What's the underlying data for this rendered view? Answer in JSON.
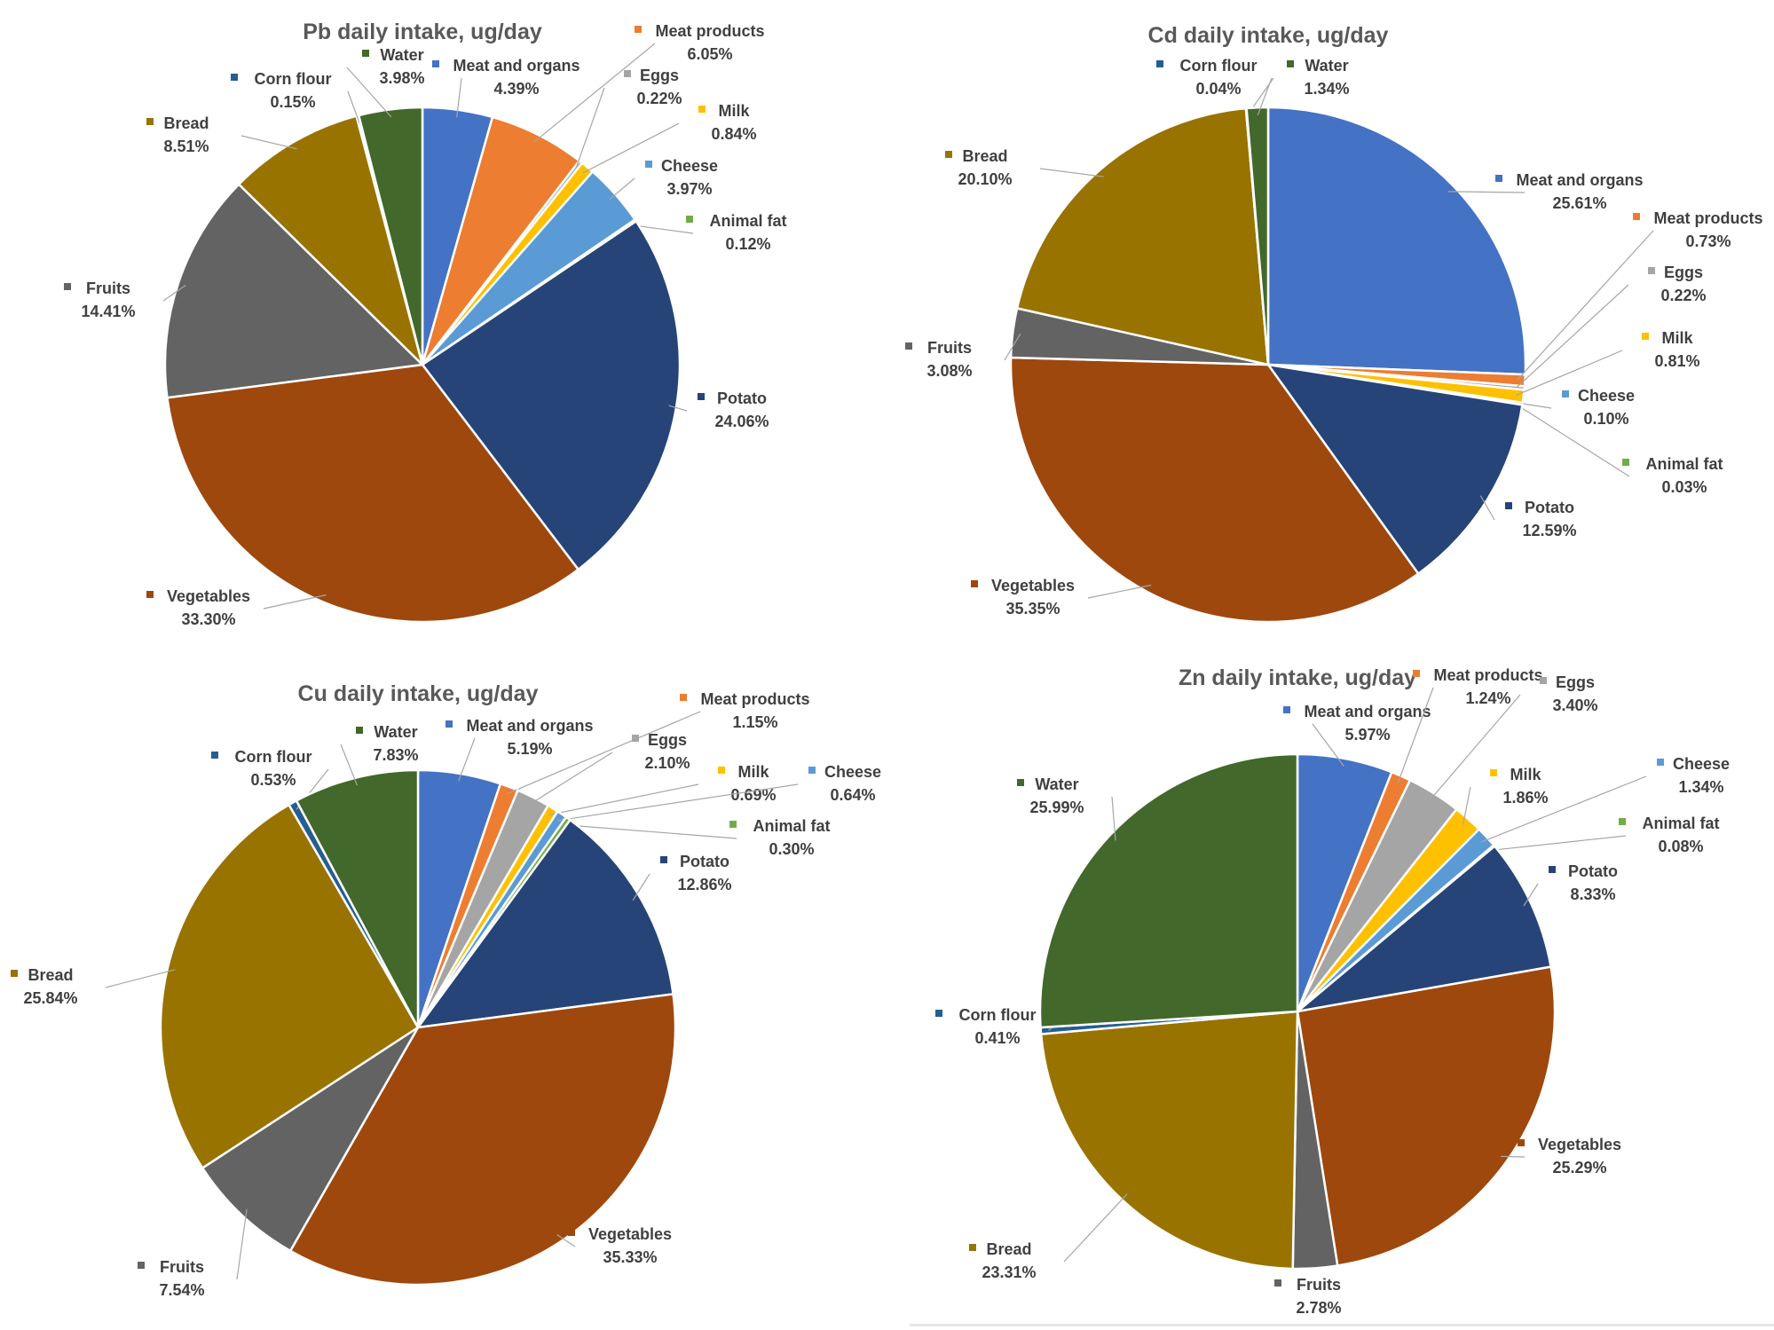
{
  "colors": {
    "Meat and organs": "#4472C4",
    "Meat products": "#ED7D31",
    "Eggs": "#A5A5A5",
    "Milk": "#FFC000",
    "Cheese": "#5B9BD5",
    "Animal fat": "#70AD47",
    "Potato": "#264478",
    "Vegetables": "#9E480E",
    "Fruits": "#636363",
    "Bread": "#997300",
    "Corn flour": "#255E91",
    "Water": "#43682B"
  },
  "chart_data": [
    {
      "type": "pie",
      "title": "Pb daily intake, ug/day",
      "slices": [
        {
          "label": "Meat and organs",
          "value": 4.39,
          "text": "4.39%"
        },
        {
          "label": "Meat products",
          "value": 6.05,
          "text": "6.05%"
        },
        {
          "label": "Eggs",
          "value": 0.22,
          "text": "0.22%"
        },
        {
          "label": "Milk",
          "value": 0.84,
          "text": "0.84%"
        },
        {
          "label": "Cheese",
          "value": 3.97,
          "text": "3.97%"
        },
        {
          "label": "Animal fat",
          "value": 0.12,
          "text": "0.12%"
        },
        {
          "label": "Potato",
          "value": 24.06,
          "text": "24.06%"
        },
        {
          "label": "Vegetables",
          "value": 33.3,
          "text": "33.30%"
        },
        {
          "label": "Fruits",
          "value": 14.41,
          "text": "14.41%"
        },
        {
          "label": "Bread",
          "value": 8.51,
          "text": "8.51%"
        },
        {
          "label": "Corn flour",
          "value": 0.15,
          "text": "0.15%"
        },
        {
          "label": "Water",
          "value": 3.98,
          "text": "3.98%"
        }
      ]
    },
    {
      "type": "pie",
      "title": "Cd daily intake, ug/day",
      "slices": [
        {
          "label": "Meat and organs",
          "value": 25.61,
          "text": "25.61%"
        },
        {
          "label": "Meat products",
          "value": 0.73,
          "text": "0.73%"
        },
        {
          "label": "Eggs",
          "value": 0.22,
          "text": "0.22%"
        },
        {
          "label": "Milk",
          "value": 0.81,
          "text": "0.81%"
        },
        {
          "label": "Cheese",
          "value": 0.1,
          "text": "0.10%"
        },
        {
          "label": "Animal fat",
          "value": 0.03,
          "text": "0.03%"
        },
        {
          "label": "Potato",
          "value": 12.59,
          "text": "12.59%"
        },
        {
          "label": "Vegetables",
          "value": 35.35,
          "text": "35.35%"
        },
        {
          "label": "Fruits",
          "value": 3.08,
          "text": "3.08%"
        },
        {
          "label": "Bread",
          "value": 20.1,
          "text": "20.10%"
        },
        {
          "label": "Corn flour",
          "value": 0.04,
          "text": "0.04%"
        },
        {
          "label": "Water",
          "value": 1.34,
          "text": "1.34%"
        }
      ]
    },
    {
      "type": "pie",
      "title": "Cu daily intake, ug/day",
      "slices": [
        {
          "label": "Meat and organs",
          "value": 5.19,
          "text": "5.19%"
        },
        {
          "label": "Meat products",
          "value": 1.15,
          "text": "1.15%"
        },
        {
          "label": "Eggs",
          "value": 2.1,
          "text": "2.10%"
        },
        {
          "label": "Milk",
          "value": 0.69,
          "text": "0.69%"
        },
        {
          "label": "Cheese",
          "value": 0.64,
          "text": "0.64%"
        },
        {
          "label": "Animal fat",
          "value": 0.3,
          "text": "0.30%"
        },
        {
          "label": "Potato",
          "value": 12.86,
          "text": "12.86%"
        },
        {
          "label": "Vegetables",
          "value": 35.33,
          "text": "35.33%"
        },
        {
          "label": "Fruits",
          "value": 7.54,
          "text": "7.54%"
        },
        {
          "label": "Bread",
          "value": 25.84,
          "text": "25.84%"
        },
        {
          "label": "Corn flour",
          "value": 0.53,
          "text": "0.53%"
        },
        {
          "label": "Water",
          "value": 7.83,
          "text": "7.83%"
        }
      ]
    },
    {
      "type": "pie",
      "title": "Zn daily intake, ug/day",
      "slices": [
        {
          "label": "Meat and organs",
          "value": 5.97,
          "text": "5.97%"
        },
        {
          "label": "Meat products",
          "value": 1.24,
          "text": "1.24%"
        },
        {
          "label": "Eggs",
          "value": 3.4,
          "text": "3.40%"
        },
        {
          "label": "Milk",
          "value": 1.86,
          "text": "1.86%"
        },
        {
          "label": "Cheese",
          "value": 1.34,
          "text": "1.34%"
        },
        {
          "label": "Animal fat",
          "value": 0.08,
          "text": "0.08%"
        },
        {
          "label": "Potato",
          "value": 8.33,
          "text": "8.33%"
        },
        {
          "label": "Vegetables",
          "value": 25.29,
          "text": "25.29%"
        },
        {
          "label": "Fruits",
          "value": 2.78,
          "text": "2.78%"
        },
        {
          "label": "Bread",
          "value": 23.31,
          "text": "23.31%"
        },
        {
          "label": "Corn flour",
          "value": 0.41,
          "text": "0.41%"
        },
        {
          "label": "Water",
          "value": 25.99,
          "text": "25.99%"
        }
      ]
    }
  ]
}
